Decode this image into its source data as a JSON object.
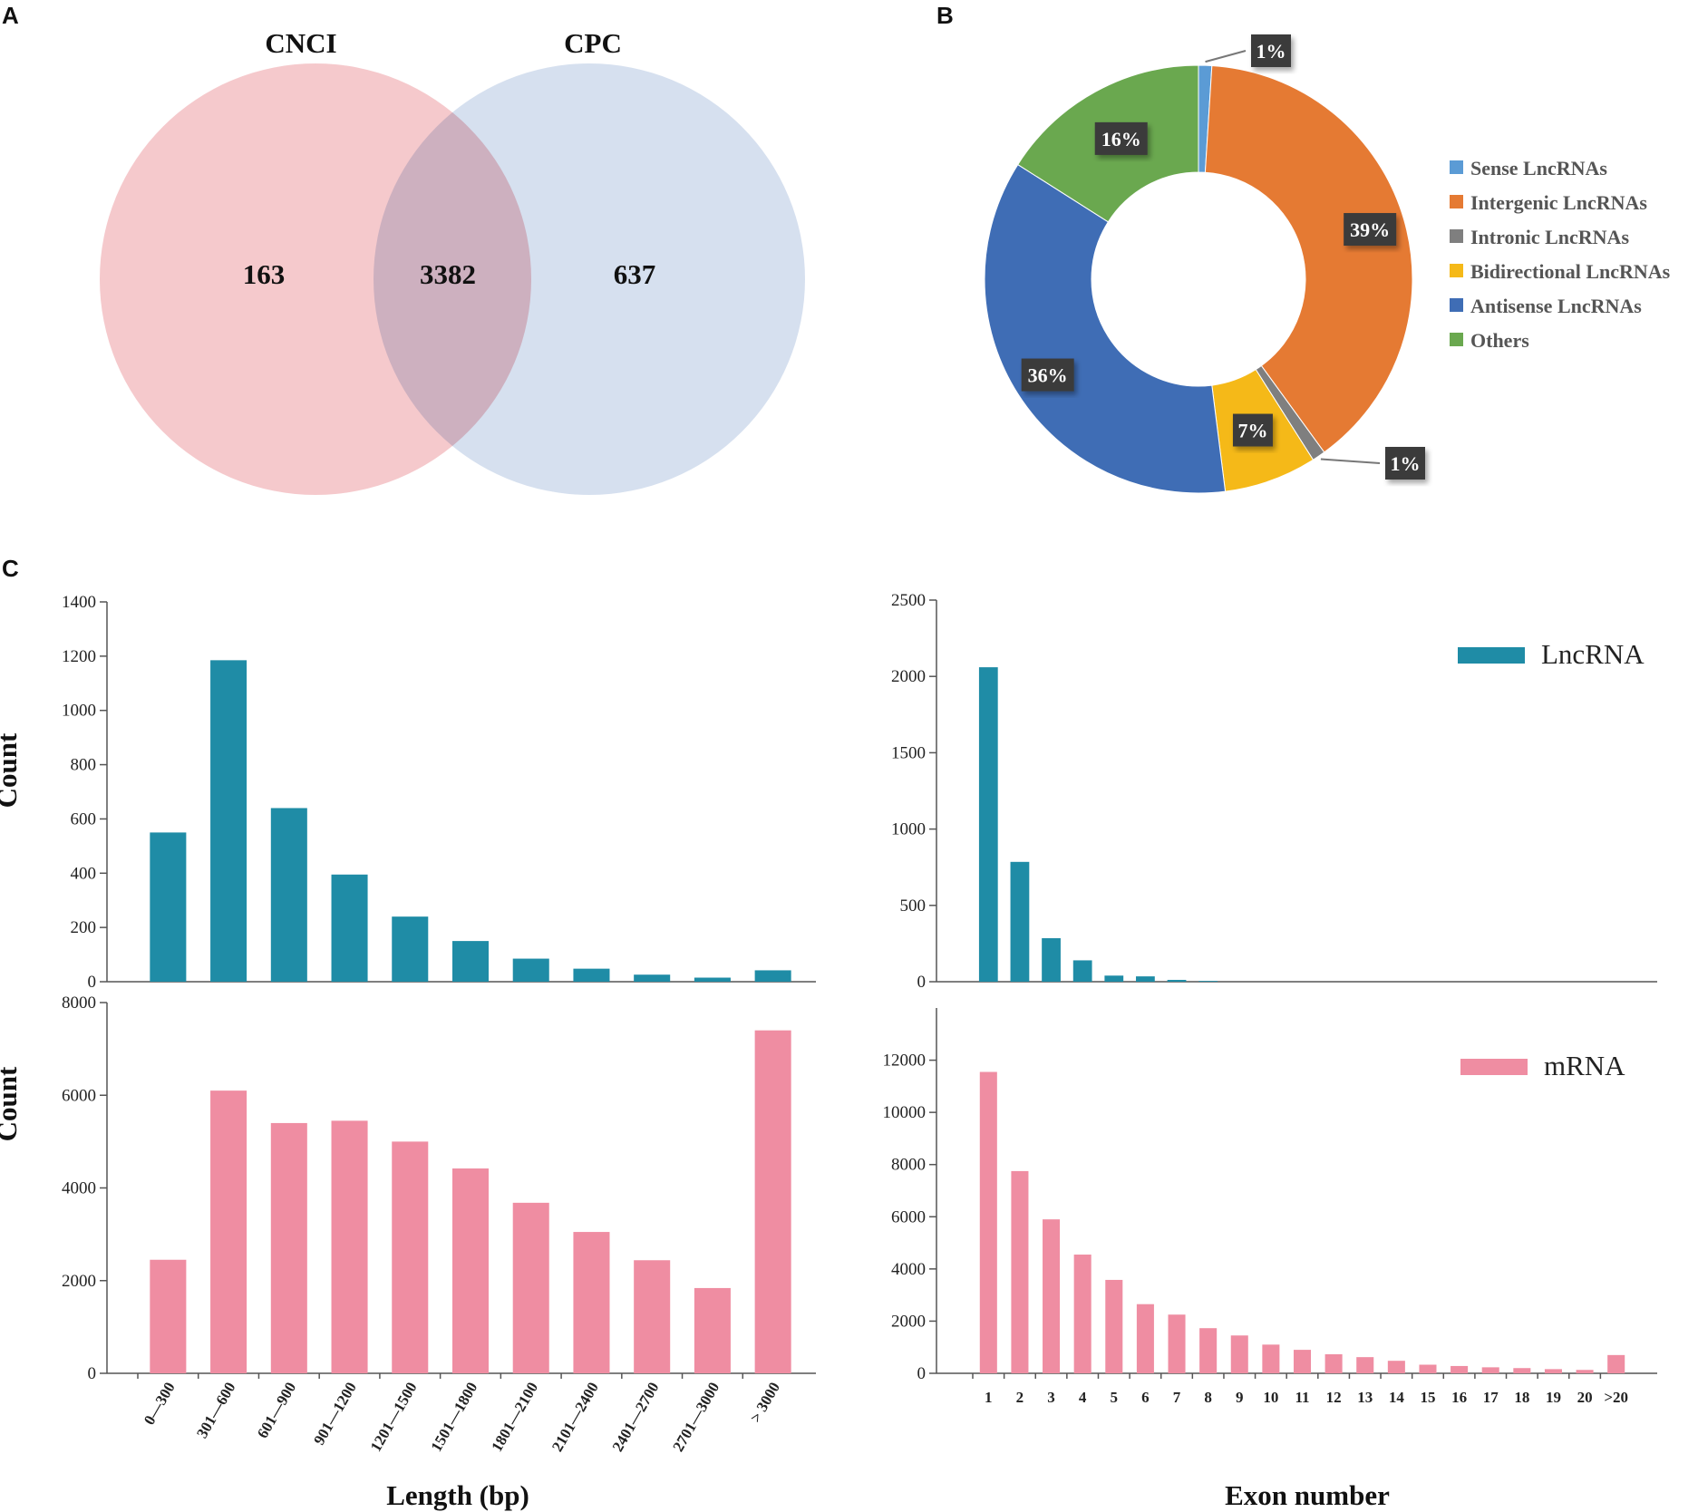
{
  "panels": {
    "a": "A",
    "b": "B",
    "c": "C"
  },
  "venn": {
    "left_label": "CNCI",
    "right_label": "CPC",
    "left_only": "163",
    "overlap": "3382",
    "right_only": "637",
    "left_color": "#f4c6c9",
    "right_color": "#cfdbec"
  },
  "chart_data": [
    {
      "type": "pie",
      "title": "",
      "donut": true,
      "slices": [
        {
          "name": "Sense LncRNAs",
          "value": 1,
          "label": "1%",
          "color": "#5b9bd5"
        },
        {
          "name": "Intergenic LncRNAs",
          "value": 39,
          "label": "39%",
          "color": "#e57a33"
        },
        {
          "name": "Intronic LncRNAs",
          "value": 1,
          "label": "1%",
          "color": "#7f7f7f"
        },
        {
          "name": "Bidirectional LncRNAs",
          "value": 7,
          "label": "7%",
          "color": "#f5b918"
        },
        {
          "name": "Antisense LncRNAs",
          "value": 36,
          "label": "36%",
          "color": "#3f6db5"
        },
        {
          "name": "Others",
          "value": 16,
          "label": "16%",
          "color": "#6aa84f"
        }
      ],
      "legend": "right"
    },
    {
      "type": "bar",
      "title": "",
      "xlabel": "",
      "ylabel": "Count",
      "ylim": [
        0,
        1400
      ],
      "yticks": [
        "0",
        "200",
        "400",
        "600",
        "800",
        "1000",
        "1200",
        "1400"
      ],
      "categories": [
        "0—300",
        "301—600",
        "601—900",
        "901—1200",
        "1201—1500",
        "1501—1800",
        "1801—2100",
        "2101—2400",
        "2401—2700",
        "2701—3000",
        "> 3000"
      ],
      "series": [
        {
          "name": "LncRNA",
          "color": "#1f8ca6",
          "values": [
            550,
            1185,
            640,
            395,
            240,
            150,
            85,
            48,
            26,
            15,
            42
          ]
        }
      ]
    },
    {
      "type": "bar",
      "title": "",
      "xlabel": "",
      "ylabel": "",
      "ylim": [
        0,
        2500
      ],
      "yticks": [
        "0",
        "500",
        "1000",
        "1500",
        "2000",
        "2500"
      ],
      "categories": [
        "1",
        "2",
        "3",
        "4",
        "5",
        "6",
        "7",
        "8",
        "9",
        "10",
        "11",
        "12",
        "13",
        "14",
        "15",
        "16",
        "17",
        "18",
        "19",
        "20",
        ">20"
      ],
      "series": [
        {
          "name": "LncRNA",
          "color": "#1f8ca6",
          "values": [
            2060,
            785,
            285,
            140,
            40,
            35,
            12,
            5,
            0,
            0,
            0,
            0,
            0,
            0,
            0,
            0,
            0,
            0,
            0,
            0,
            0
          ]
        }
      ],
      "legend": {
        "label": "LncRNA",
        "color": "#1f8ca6"
      }
    },
    {
      "type": "bar",
      "title": "",
      "xlabel": "Length (bp)",
      "ylabel": "Count",
      "ylim": [
        0,
        8000
      ],
      "yticks": [
        "0",
        "2000",
        "4000",
        "6000",
        "8000"
      ],
      "categories": [
        "0—300",
        "301—600",
        "601—900",
        "901—1200",
        "1201—1500",
        "1501—1800",
        "1801—2100",
        "2101—2400",
        "2401—2700",
        "2701—3000",
        "> 3000"
      ],
      "series": [
        {
          "name": "mRNA",
          "color": "#ef8da2",
          "values": [
            2450,
            6100,
            5400,
            5450,
            5000,
            4420,
            3680,
            3050,
            2440,
            1840,
            7400
          ]
        }
      ]
    },
    {
      "type": "bar",
      "title": "",
      "xlabel": "Exon number",
      "ylabel": "",
      "ylim": [
        0,
        14000
      ],
      "yticks": [
        "0",
        "2000",
        "4000",
        "6000",
        "8000",
        "10000",
        "12000"
      ],
      "categories": [
        "1",
        "2",
        "3",
        "4",
        "5",
        "6",
        "7",
        "8",
        "9",
        "10",
        "11",
        "12",
        "13",
        "14",
        "15",
        "16",
        "17",
        "18",
        "19",
        "20",
        ">20"
      ],
      "series": [
        {
          "name": "mRNA",
          "color": "#ef8da2",
          "values": [
            11550,
            7750,
            5900,
            4550,
            3580,
            2650,
            2250,
            1730,
            1450,
            1100,
            900,
            730,
            620,
            480,
            330,
            280,
            230,
            200,
            160,
            130,
            700
          ]
        }
      ],
      "legend": {
        "label": "mRNA",
        "color": "#ef8da2"
      }
    }
  ]
}
